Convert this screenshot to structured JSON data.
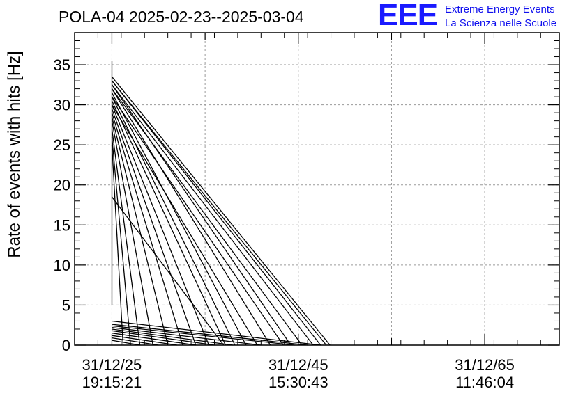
{
  "title": "POLA-04 2025-02-23--2025-03-04",
  "logo": {
    "mark": "EEE",
    "line1": "Extreme Energy Events",
    "line2": "La Scienza nelle Scuole",
    "color": "#1a1aff"
  },
  "chart_data": {
    "type": "line",
    "title": "POLA-04 2025-02-23--2025-03-04",
    "xlabel": "",
    "ylabel": "Rate of events with hits [Hz]",
    "ylim": [
      0,
      39
    ],
    "yticks": [
      0,
      5,
      10,
      15,
      20,
      25,
      30,
      35
    ],
    "xlim": [
      -0.2,
      2.4
    ],
    "xticks": [
      {
        "value": 0,
        "line1": "31/12/25",
        "line2": "19:15:21"
      },
      {
        "value": 1,
        "line1": "31/12/45",
        "line2": "15:30:43"
      },
      {
        "value": 2,
        "line1": "31/12/65",
        "line2": "11:46:04"
      }
    ],
    "grid": true,
    "line_color": "#000000",
    "series": [
      {
        "values": [
          [
            0.0,
            35.5
          ],
          [
            0.0,
            5.0
          ]
        ]
      },
      {
        "values": [
          [
            0.0,
            33.5
          ],
          [
            1.17,
            0.0
          ]
        ]
      },
      {
        "values": [
          [
            0.0,
            33.0
          ],
          [
            1.15,
            0.0
          ]
        ]
      },
      {
        "values": [
          [
            0.0,
            32.5
          ],
          [
            1.08,
            0.0
          ]
        ]
      },
      {
        "values": [
          [
            0.0,
            32.0
          ],
          [
            1.02,
            0.0
          ]
        ]
      },
      {
        "values": [
          [
            0.0,
            32.0
          ],
          [
            0.85,
            0.0
          ]
        ]
      },
      {
        "values": [
          [
            0.0,
            31.5
          ],
          [
            0.72,
            0.0
          ]
        ]
      },
      {
        "values": [
          [
            0.0,
            31.0
          ],
          [
            0.66,
            0.0
          ]
        ]
      },
      {
        "values": [
          [
            0.0,
            30.5
          ],
          [
            0.61,
            0.0
          ]
        ]
      },
      {
        "values": [
          [
            0.0,
            30.0
          ],
          [
            0.52,
            0.0
          ]
        ]
      },
      {
        "values": [
          [
            0.0,
            29.5
          ],
          [
            0.45,
            0.0
          ]
        ]
      },
      {
        "values": [
          [
            0.0,
            29.0
          ],
          [
            0.38,
            0.0
          ]
        ]
      },
      {
        "values": [
          [
            0.0,
            28.5
          ],
          [
            0.3,
            0.0
          ]
        ]
      },
      {
        "values": [
          [
            0.0,
            28.0
          ],
          [
            0.22,
            0.0
          ]
        ]
      },
      {
        "values": [
          [
            0.0,
            27.0
          ],
          [
            0.15,
            0.0
          ]
        ]
      },
      {
        "values": [
          [
            0.0,
            26.0
          ],
          [
            0.1,
            0.0
          ]
        ]
      },
      {
        "values": [
          [
            0.0,
            25.0
          ],
          [
            0.06,
            0.0
          ]
        ]
      },
      {
        "values": [
          [
            0.0,
            30.0
          ],
          [
            0.78,
            0.0
          ]
        ]
      },
      {
        "values": [
          [
            0.0,
            31.0
          ],
          [
            0.92,
            0.0
          ]
        ]
      },
      {
        "values": [
          [
            0.0,
            32.5
          ],
          [
            0.96,
            0.0
          ]
        ]
      },
      {
        "values": [
          [
            0.0,
            33.0
          ],
          [
            1.12,
            0.0
          ]
        ]
      },
      {
        "values": [
          [
            0.0,
            18.5
          ],
          [
            0.6,
            0.0
          ]
        ]
      },
      {
        "values": [
          [
            0.0,
            3.0
          ],
          [
            1.12,
            0.0
          ]
        ]
      },
      {
        "values": [
          [
            0.0,
            2.6
          ],
          [
            1.05,
            0.0
          ]
        ]
      },
      {
        "values": [
          [
            0.0,
            2.4
          ],
          [
            0.98,
            0.0
          ]
        ]
      },
      {
        "values": [
          [
            0.0,
            2.2
          ],
          [
            0.8,
            0.0
          ]
        ]
      },
      {
        "values": [
          [
            0.0,
            2.0
          ],
          [
            0.65,
            0.0
          ]
        ]
      },
      {
        "values": [
          [
            0.0,
            1.8
          ],
          [
            0.55,
            0.0
          ]
        ]
      },
      {
        "values": [
          [
            0.0,
            1.5
          ],
          [
            0.45,
            0.0
          ]
        ]
      },
      {
        "values": [
          [
            0.0,
            1.2
          ],
          [
            0.35,
            0.0
          ]
        ]
      },
      {
        "values": [
          [
            0.0,
            0.9
          ],
          [
            0.25,
            0.0
          ]
        ]
      },
      {
        "values": [
          [
            0.0,
            0.6
          ],
          [
            0.15,
            0.0
          ]
        ]
      }
    ]
  }
}
